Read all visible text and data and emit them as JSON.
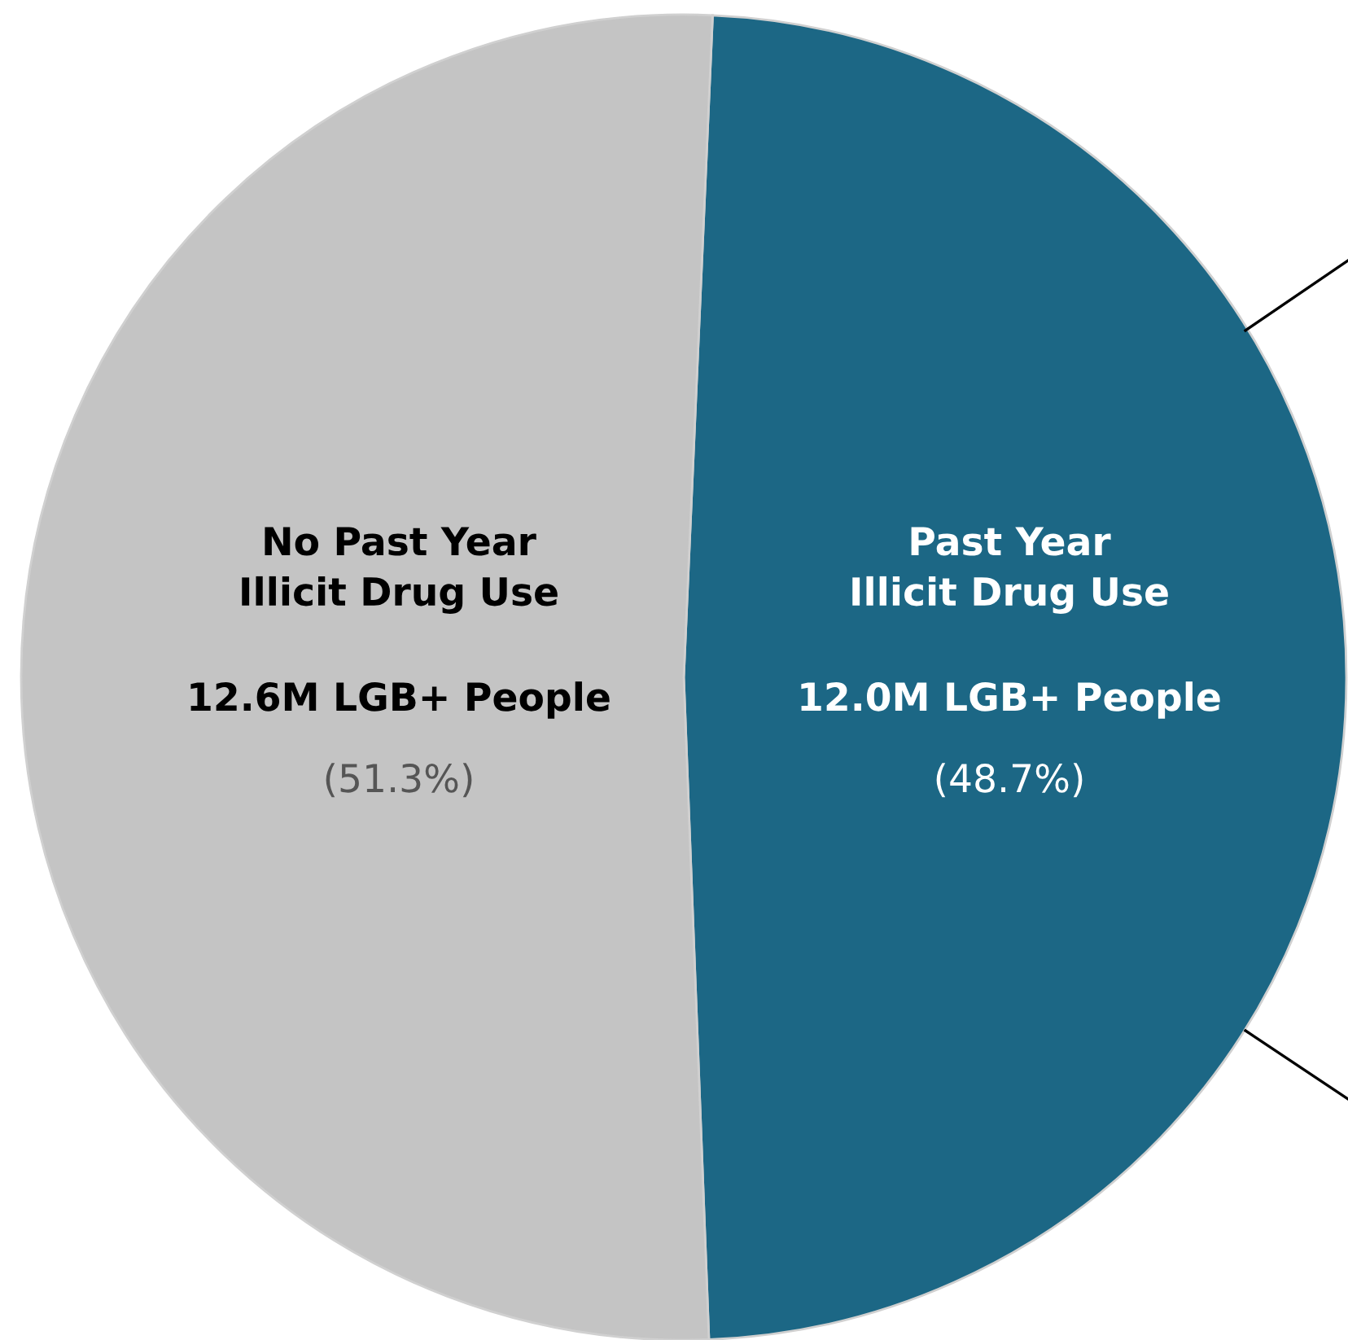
{
  "chart_data": {
    "type": "pie",
    "categories": [
      "Past Year\nIllicit Drug Use",
      "No Past Year\nIllicit Drug Use"
    ],
    "values": [
      48.7,
      51.3
    ],
    "colors": [
      "#1c6785",
      "#c4c4c4"
    ],
    "value_labels": [
      "12.0M LGB+ People\n(48.7%)",
      "12.6M LGB+ People\n(51.3%)"
    ]
  }
}
